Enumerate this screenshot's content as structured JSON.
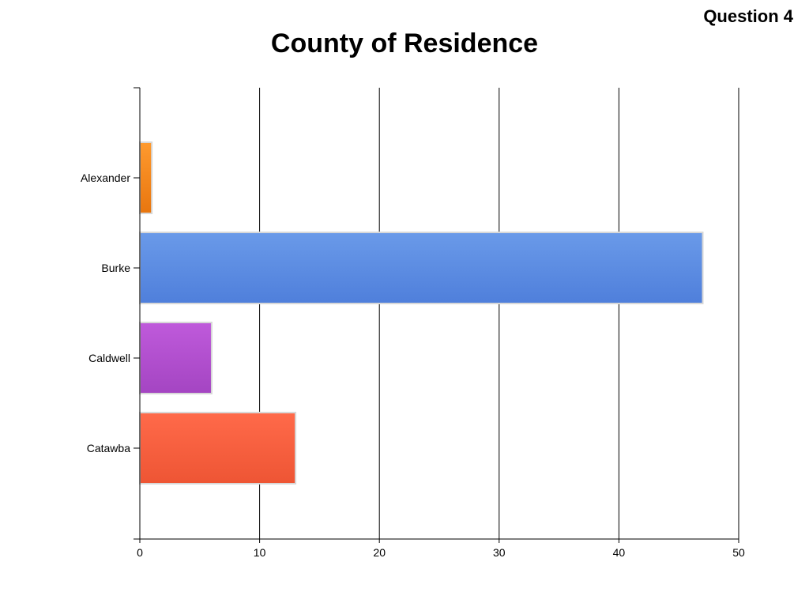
{
  "header": {
    "question_label": "Question 4",
    "title": "County of Residence"
  },
  "chart_data": {
    "type": "bar",
    "orientation": "horizontal",
    "title": "County of Residence",
    "categories": [
      "Alexander",
      "Burke",
      "Caldwell",
      "Catawba"
    ],
    "values": [
      1,
      47,
      6,
      13
    ],
    "colors": [
      "#E8760F",
      "#4F7FDB",
      "#A445C2",
      "#EE5534"
    ],
    "highlight_colors": [
      "#FF9A2E",
      "#6A9AE9",
      "#BF5ADB",
      "#FF6A4A"
    ],
    "xlim": [
      0,
      50
    ],
    "xticks": [
      "0",
      "10",
      "20",
      "30",
      "40",
      "50"
    ],
    "xlabel": "",
    "ylabel": "",
    "grid": "vertical"
  }
}
